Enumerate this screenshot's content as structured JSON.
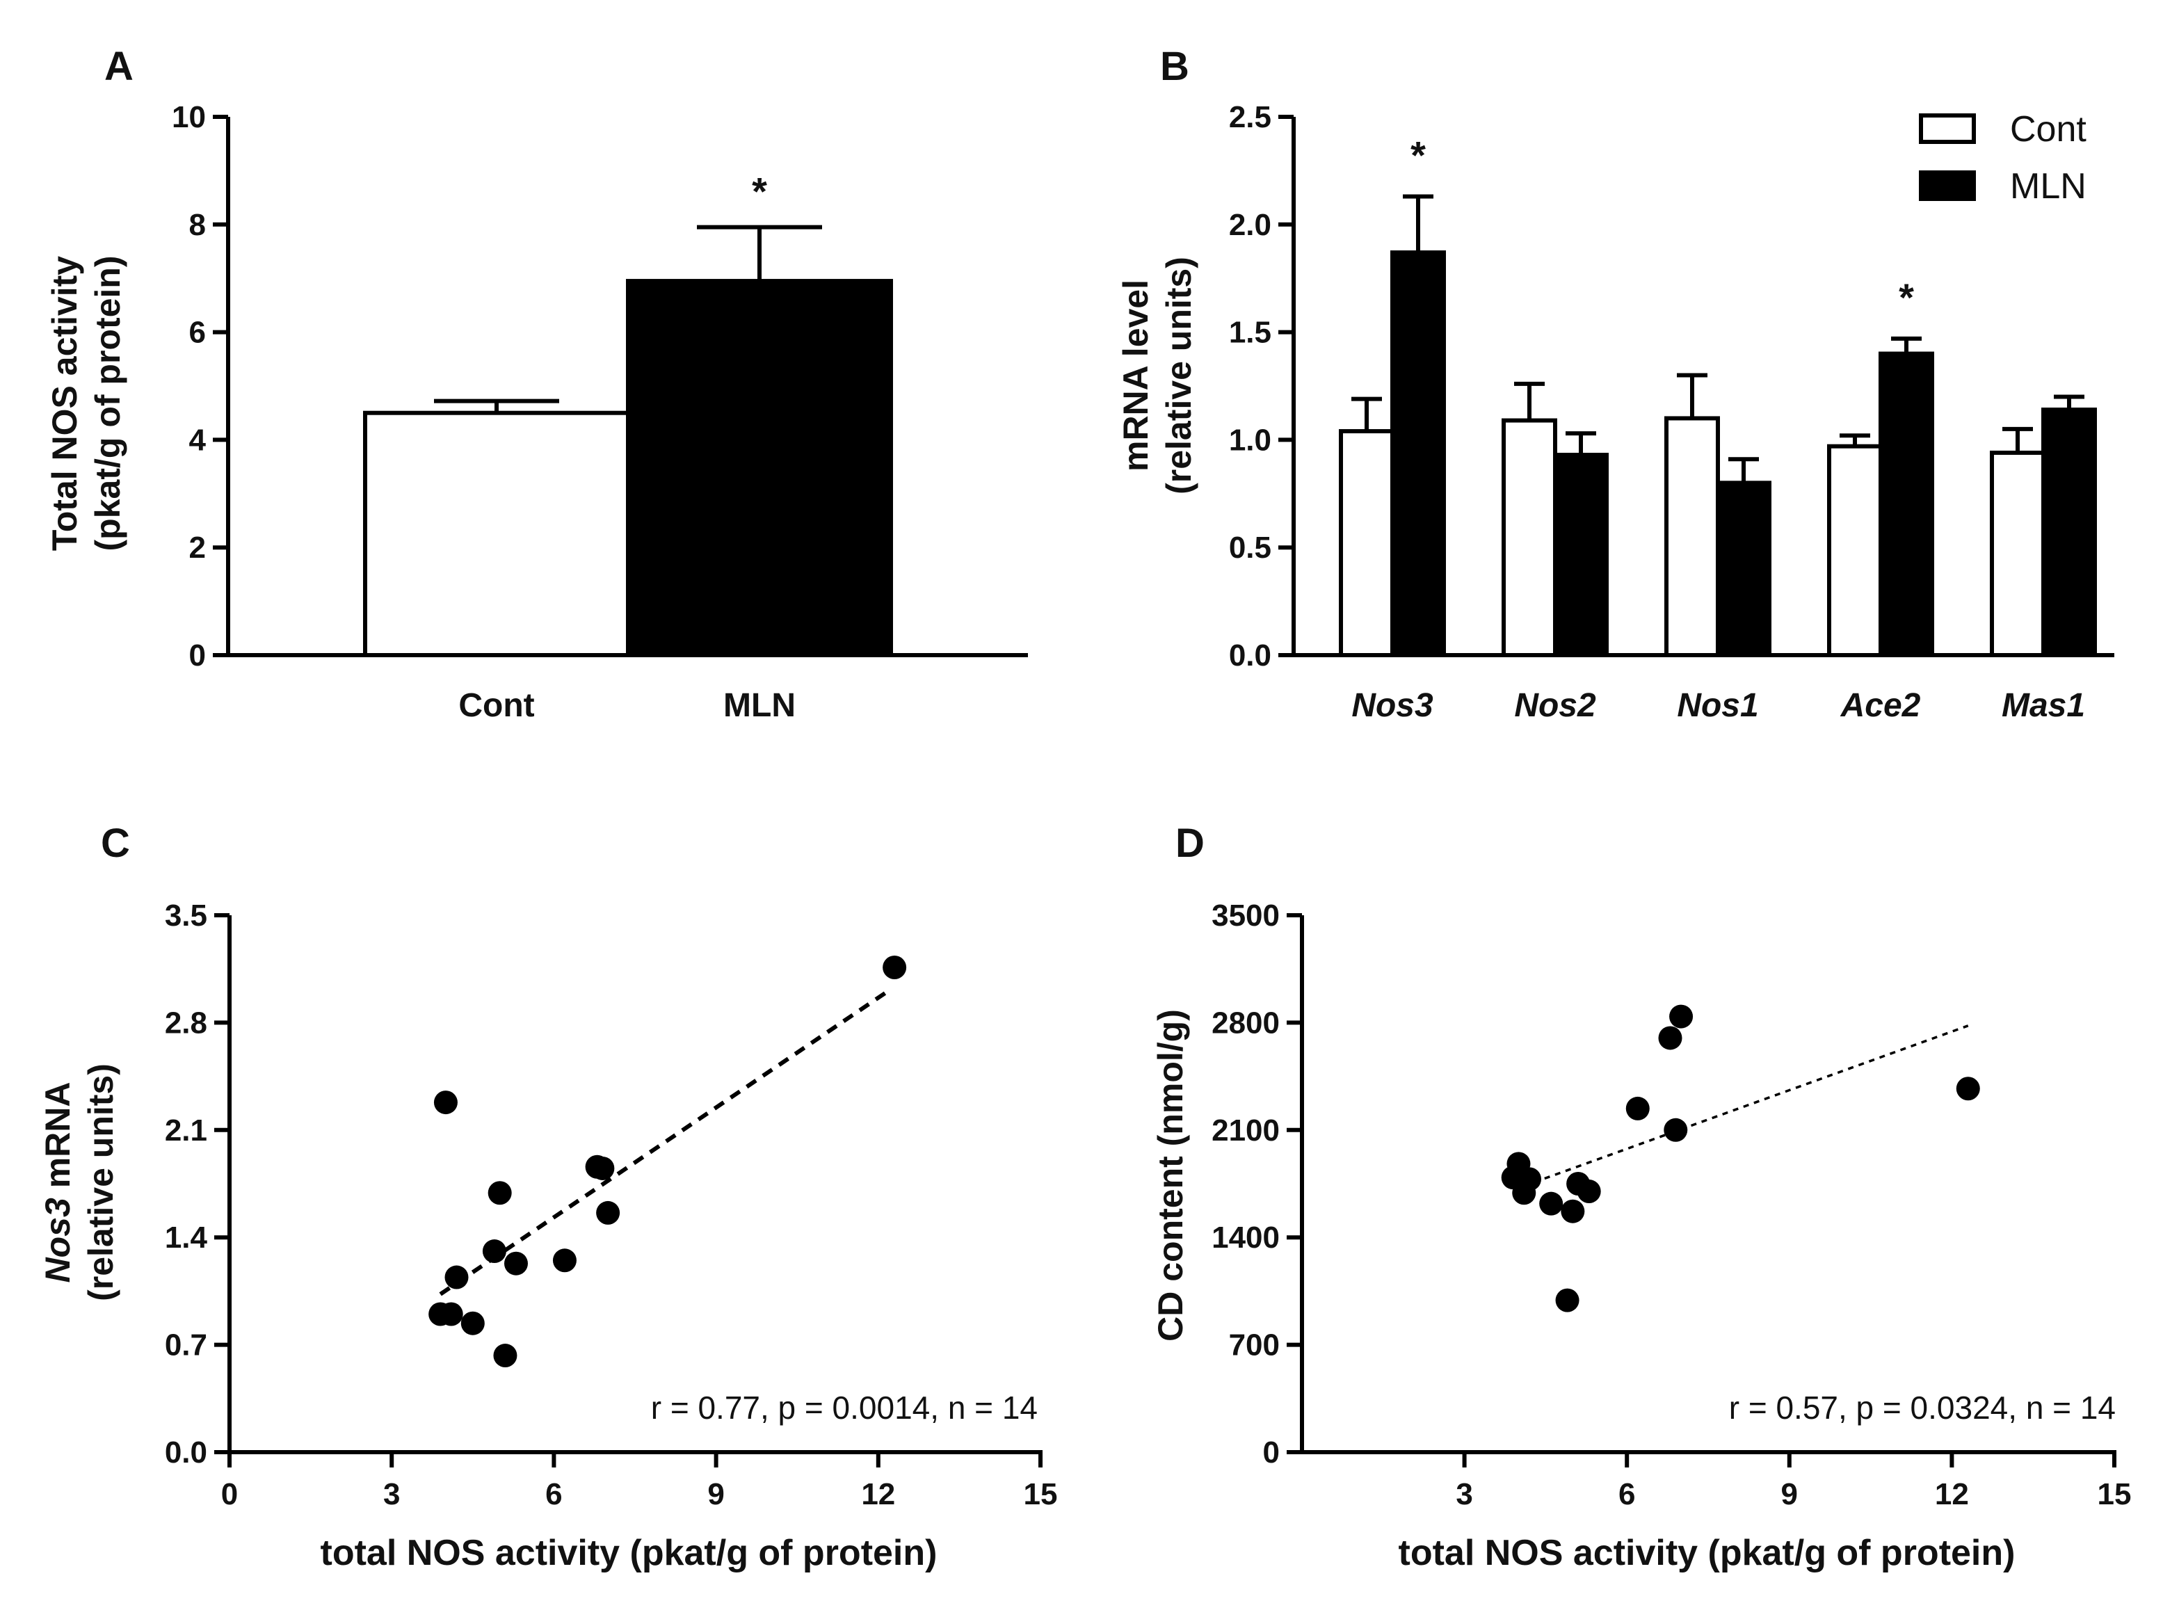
{
  "chart_data": [
    {
      "panel": "A",
      "type": "bar",
      "ylabel_lines": [
        "Total NOS activity",
        "(pkat/g of protein)"
      ],
      "ylim": [
        0,
        10
      ],
      "yticks": [
        "0",
        "2",
        "4",
        "6",
        "8",
        "10"
      ],
      "categories": [
        "Cont",
        "MLN"
      ],
      "values": [
        4.5,
        6.95
      ],
      "errors": [
        0.22,
        1.0
      ],
      "fill": [
        "#ffffff",
        "#000000"
      ],
      "significance": [
        "",
        "*"
      ]
    },
    {
      "panel": "B",
      "type": "bar",
      "ylabel_lines": [
        "mRNA level",
        "(relative units)"
      ],
      "ylim": [
        0,
        2.5
      ],
      "yticks": [
        "0.0",
        "0.5",
        "1.0",
        "1.5",
        "2.0",
        "2.5"
      ],
      "categories": [
        "Nos3",
        "Nos2",
        "Nos1",
        "Ace2",
        "Mas1"
      ],
      "legend_position": "top-right",
      "series": [
        {
          "name": "Cont",
          "color": "#ffffff",
          "values": [
            1.04,
            1.09,
            1.1,
            0.97,
            0.94
          ],
          "errors": [
            0.15,
            0.17,
            0.2,
            0.05,
            0.11
          ]
        },
        {
          "name": "MLN",
          "color": "#000000",
          "values": [
            1.87,
            0.93,
            0.8,
            1.4,
            1.14
          ],
          "errors": [
            0.26,
            0.1,
            0.11,
            0.07,
            0.06
          ]
        }
      ],
      "significance": [
        "*",
        "",
        "",
        "*",
        ""
      ]
    },
    {
      "panel": "C",
      "type": "scatter",
      "xlabel": "total NOS activity (pkat/g of protein)",
      "ylabel_italic": "Nos3",
      "ylabel_rest": " mRNA",
      "ylabel_line2": "(relative units)",
      "xlim": [
        0,
        15
      ],
      "ylim": [
        0,
        3.5
      ],
      "xticks": [
        "0",
        "3",
        "6",
        "9",
        "12",
        "15"
      ],
      "yticks": [
        "0.0",
        "0.7",
        "1.4",
        "2.1",
        "2.8",
        "3.5"
      ],
      "points": [
        [
          3.9,
          0.9
        ],
        [
          4.1,
          0.9
        ],
        [
          4.0,
          2.28
        ],
        [
          4.2,
          1.14
        ],
        [
          4.5,
          0.84
        ],
        [
          4.9,
          1.31
        ],
        [
          5.0,
          1.69
        ],
        [
          5.1,
          0.63
        ],
        [
          5.3,
          1.23
        ],
        [
          6.2,
          1.25
        ],
        [
          6.8,
          1.86
        ],
        [
          6.9,
          1.85
        ],
        [
          7.0,
          1.56
        ],
        [
          12.3,
          3.16
        ]
      ],
      "fit": [
        [
          3.9,
          1.03
        ],
        [
          12.2,
          3.01
        ]
      ],
      "annotation": "r = 0.77, p = 0.0014, n = 14"
    },
    {
      "panel": "D",
      "type": "scatter",
      "xlabel": "total NOS activity (pkat/g of protein)",
      "ylabel": "CD content (nmol/g)",
      "xlim": [
        0,
        15
      ],
      "ylim": [
        0,
        3500
      ],
      "xticks": [
        "3",
        "6",
        "9",
        "12",
        "15"
      ],
      "yticks": [
        "0",
        "700",
        "1400",
        "2100",
        "2800",
        "3500"
      ],
      "points": [
        [
          3.9,
          1790
        ],
        [
          4.0,
          1880
        ],
        [
          4.1,
          1690
        ],
        [
          4.2,
          1780
        ],
        [
          4.6,
          1620
        ],
        [
          4.9,
          990
        ],
        [
          5.0,
          1570
        ],
        [
          5.1,
          1750
        ],
        [
          5.3,
          1700
        ],
        [
          6.2,
          2240
        ],
        [
          6.8,
          2700
        ],
        [
          6.9,
          2100
        ],
        [
          7.0,
          2840
        ],
        [
          12.3,
          2370
        ]
      ],
      "fit": [
        [
          3.9,
          1710
        ],
        [
          12.3,
          2780
        ]
      ],
      "annotation": "r = 0.57, p = 0.0324, n = 14"
    }
  ]
}
